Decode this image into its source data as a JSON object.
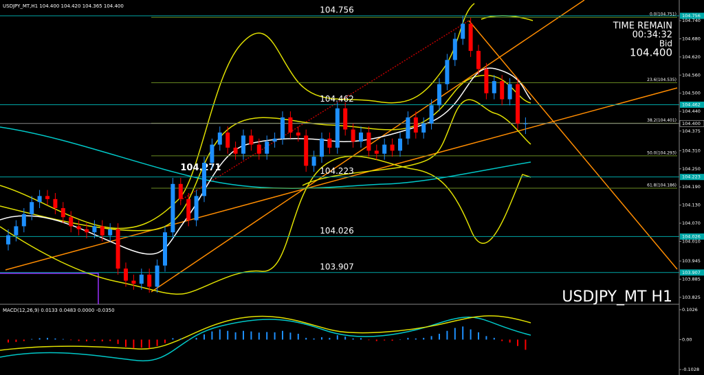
{
  "chart_data": {
    "type": "candlestick",
    "header": "USDJPY_MT,H1 104.400 104.420 104.365 104.400",
    "symbol_label": "USDJPY_MT H1",
    "time_remain_label": "TIME REMAIN",
    "time_remain": "00:34:32",
    "bid_label": "Bid",
    "bid": {
      "value": 104.4,
      "label": "104.400"
    },
    "up_color": "#1e90ff",
    "down_color": "#ff0000",
    "level_color": "#00a8a8",
    "fib_color": "#6b8e23",
    "ylim": [
      103.802,
      104.797
    ],
    "yticks": [
      {
        "value": 104.74,
        "label": "104.740"
      },
      {
        "value": 104.68,
        "label": "104.680"
      },
      {
        "value": 104.62,
        "label": "104.620"
      },
      {
        "value": 104.56,
        "label": "104.560"
      },
      {
        "value": 104.5,
        "label": "104.500"
      },
      {
        "value": 104.44,
        "label": "104.440"
      },
      104.375,
      {
        "value": 104.31,
        "label": "104.310"
      },
      {
        "value": 104.25,
        "label": "104.250"
      },
      {
        "value": 104.19,
        "label": "104.190"
      },
      {
        "value": 104.13,
        "label": "104.130"
      },
      {
        "value": 104.07,
        "label": "104.070"
      },
      {
        "value": 104.01,
        "label": "104.010"
      },
      103.945,
      103.885,
      103.825
    ],
    "levels": [
      104.756,
      104.462,
      104.223,
      104.026,
      103.907
    ],
    "annotation": 104.271,
    "fib_levels": [
      {
        "value": 104.751,
        "label": "0.0(104.751)"
      },
      {
        "value": 104.535,
        "label": "23.6(104.535)"
      },
      {
        "value": 104.401,
        "label": "38.2(104.401)"
      },
      {
        "value": 104.293,
        "label": "50.0(104.293)"
      },
      {
        "value": 104.186,
        "label": "61.8(104.186)"
      }
    ],
    "open": [
      104.0,
      104.03,
      104.06,
      104.1,
      104.14,
      104.16,
      104.15,
      104.12,
      104.09,
      104.06,
      104.05,
      104.04,
      104.06,
      104.03,
      104.05,
      103.92,
      103.88,
      103.87,
      103.9,
      103.86,
      103.93,
      104.04,
      104.2,
      104.15,
      104.08,
      104.16,
      104.27,
      104.33,
      104.37,
      104.32,
      104.3,
      104.36,
      104.33,
      104.3,
      104.34,
      104.35,
      104.42,
      104.37,
      104.36,
      104.26,
      104.29,
      104.35,
      104.32,
      104.45,
      104.38,
      104.34,
      104.37,
      104.31,
      104.3,
      104.33,
      104.31,
      104.35,
      104.42,
      104.37,
      104.4,
      104.46,
      104.53,
      104.61,
      104.68,
      104.73,
      104.64,
      104.58,
      104.5,
      104.54,
      104.48,
      104.53,
      104.4
    ],
    "high": [
      104.05,
      104.08,
      104.12,
      104.16,
      104.18,
      104.18,
      104.17,
      104.14,
      104.11,
      104.08,
      104.07,
      104.08,
      104.08,
      104.07,
      104.07,
      103.94,
      103.9,
      103.92,
      103.92,
      103.95,
      104.06,
      104.22,
      104.22,
      104.17,
      104.18,
      104.29,
      104.35,
      104.39,
      104.39,
      104.34,
      104.38,
      104.38,
      104.35,
      104.36,
      104.37,
      104.44,
      104.44,
      104.39,
      104.38,
      104.31,
      104.37,
      104.37,
      104.47,
      104.47,
      104.4,
      104.39,
      104.39,
      104.33,
      104.35,
      104.35,
      104.37,
      104.44,
      104.44,
      104.42,
      104.48,
      104.55,
      104.63,
      104.7,
      104.756,
      104.75,
      104.66,
      104.6,
      104.56,
      104.56,
      104.55,
      104.55,
      104.42
    ],
    "low": [
      103.98,
      104.01,
      104.04,
      104.08,
      104.12,
      104.13,
      104.1,
      104.07,
      104.04,
      104.03,
      104.02,
      104.02,
      104.01,
      104.01,
      103.9,
      103.86,
      103.85,
      103.85,
      103.84,
      103.84,
      103.91,
      104.02,
      104.13,
      104.06,
      104.06,
      104.14,
      104.25,
      104.31,
      104.3,
      104.28,
      104.28,
      104.31,
      104.28,
      104.28,
      104.32,
      104.33,
      104.35,
      104.34,
      104.24,
      104.24,
      104.27,
      104.3,
      104.3,
      104.36,
      104.32,
      104.32,
      104.29,
      104.28,
      104.28,
      104.29,
      104.29,
      104.33,
      104.35,
      104.35,
      104.38,
      104.44,
      104.51,
      104.59,
      104.66,
      104.62,
      104.56,
      104.48,
      104.48,
      104.46,
      104.46,
      104.38,
      104.365
    ],
    "close": [
      104.03,
      104.06,
      104.1,
      104.14,
      104.16,
      104.15,
      104.12,
      104.09,
      104.06,
      104.05,
      104.04,
      104.06,
      104.03,
      104.05,
      103.92,
      103.88,
      103.87,
      103.9,
      103.86,
      103.93,
      104.04,
      104.2,
      104.15,
      104.08,
      104.16,
      104.27,
      104.33,
      104.37,
      104.32,
      104.3,
      104.36,
      104.33,
      104.3,
      104.34,
      104.35,
      104.42,
      104.37,
      104.36,
      104.26,
      104.29,
      104.35,
      104.32,
      104.45,
      104.38,
      104.34,
      104.37,
      104.31,
      104.3,
      104.33,
      104.31,
      104.35,
      104.42,
      104.37,
      104.4,
      104.46,
      104.53,
      104.61,
      104.68,
      104.73,
      104.64,
      104.58,
      104.5,
      104.54,
      104.48,
      104.53,
      104.4,
      104.4
    ],
    "macd": {
      "label": "MACD(12,26,9) 0.0133 0.0483 0.0000 -0.0350",
      "ylim": [
        -0.1192,
        0.1166
      ],
      "yticks": [
        0.1026,
        {
          "value": 0,
          "label": "0.00"
        },
        -0.1028
      ],
      "histogram": [
        -0.01,
        -0.008,
        -0.005,
        0.002,
        0.005,
        0.006,
        0.004,
        0.002,
        -0.002,
        -0.005,
        -0.006,
        -0.004,
        -0.006,
        -0.005,
        -0.015,
        -0.025,
        -0.03,
        -0.028,
        -0.03,
        -0.022,
        -0.012,
        0.005,
        0.004,
        -0.002,
        0.006,
        0.018,
        0.028,
        0.035,
        0.03,
        0.025,
        0.03,
        0.028,
        0.024,
        0.026,
        0.025,
        0.03,
        0.024,
        0.02,
        0.006,
        0.004,
        0.008,
        0.006,
        0.015,
        0.01,
        0.004,
        0.005,
        -0.002,
        -0.005,
        -0.003,
        -0.004,
        0.0,
        0.006,
        0.004,
        0.006,
        0.012,
        0.02,
        0.03,
        0.04,
        0.045,
        0.035,
        0.025,
        0.012,
        0.006,
        -0.005,
        -0.01,
        -0.022,
        -0.035
      ]
    }
  }
}
